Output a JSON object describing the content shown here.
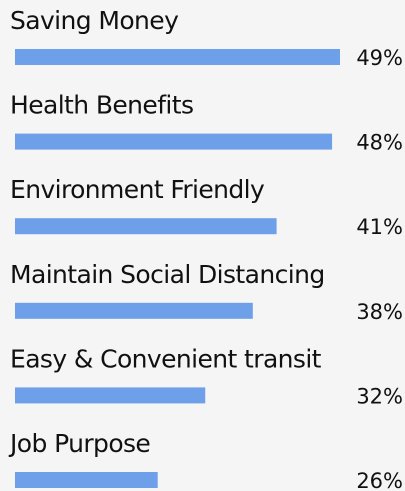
{
  "chart_data": {
    "type": "bar",
    "orientation": "horizontal",
    "categories": [
      "Saving Money",
      "Health Benefits",
      "Environment Friendly",
      "Maintain Social Distancing",
      "Easy & Convenient transit",
      "Job Purpose"
    ],
    "values": [
      49,
      48,
      41,
      38,
      32,
      26
    ],
    "value_labels": [
      "49%",
      "48%",
      "41%",
      "38%",
      "32%",
      "26%"
    ],
    "color": "#6ea0ea",
    "xlim": [
      8,
      49
    ]
  }
}
